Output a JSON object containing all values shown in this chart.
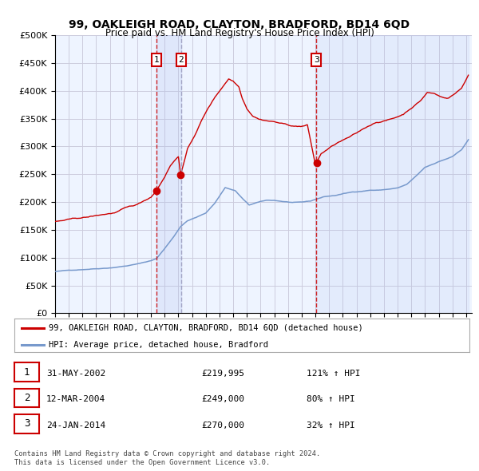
{
  "title": "99, OAKLEIGH ROAD, CLAYTON, BRADFORD, BD14 6QD",
  "subtitle": "Price paid vs. HM Land Registry's House Price Index (HPI)",
  "legend_line1": "99, OAKLEIGH ROAD, CLAYTON, BRADFORD, BD14 6QD (detached house)",
  "legend_line2": "HPI: Average price, detached house, Bradford",
  "footer1": "Contains HM Land Registry data © Crown copyright and database right 2024.",
  "footer2": "This data is licensed under the Open Government Licence v3.0.",
  "transactions": [
    {
      "label": "1",
      "date": "31-MAY-2002",
      "price": 219995,
      "price_str": "£219,995",
      "hpi_pct": "121% ↑ HPI",
      "year": 2002,
      "month": 5,
      "day": 31
    },
    {
      "label": "2",
      "date": "12-MAR-2004",
      "price": 249000,
      "price_str": "£249,000",
      "hpi_pct": "80% ↑ HPI",
      "year": 2004,
      "month": 3,
      "day": 12
    },
    {
      "label": "3",
      "date": "24-JAN-2014",
      "price": 270000,
      "price_str": "£270,000",
      "hpi_pct": "32% ↑ HPI",
      "year": 2014,
      "month": 1,
      "day": 24
    }
  ],
  "red_line_color": "#cc0000",
  "blue_line_color": "#7799cc",
  "dot_color": "#cc0000",
  "grid_color": "#ccccdd",
  "plot_bg": "#eef4ff",
  "ylim": [
    0,
    500000
  ],
  "yticks": [
    0,
    50000,
    100000,
    150000,
    200000,
    250000,
    300000,
    350000,
    400000,
    450000,
    500000
  ],
  "start_year": 1995,
  "end_year": 2025
}
